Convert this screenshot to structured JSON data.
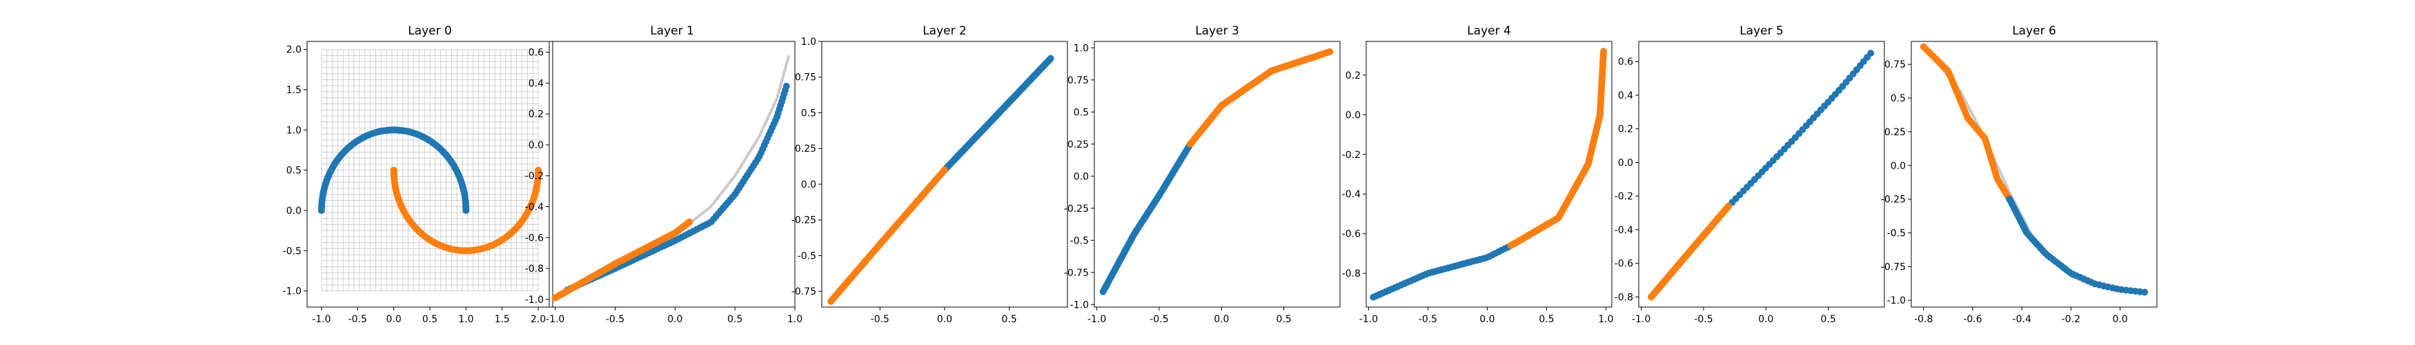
{
  "colors": {
    "series_blue": "#1f77b4",
    "series_orange": "#ff7f0e",
    "grid_line": "#c8c8c8",
    "manifold_line": "#bdbdbd",
    "axis": "#000000"
  },
  "chart_data": [
    {
      "title": "Layer 0",
      "type": "scatter",
      "xlim": [
        -1.2,
        2.2
      ],
      "ylim": [
        -1.2,
        2.1
      ],
      "xticks": [
        -1.0,
        -0.5,
        0.0,
        0.5,
        1.0,
        1.5,
        2.0
      ],
      "yticks": [
        -1.0,
        -0.5,
        0.0,
        0.5,
        1.0,
        1.5,
        2.0
      ],
      "grid": {
        "x": [
          -1.0,
          2.0
        ],
        "y": [
          -1.0,
          2.0
        ],
        "n": 41
      },
      "series": [
        {
          "color": "blue",
          "shape": "arc",
          "cx": 0.0,
          "cy": 0.0,
          "r": 1.0,
          "a0": 0,
          "a1": 180,
          "n": 100
        },
        {
          "color": "orange",
          "shape": "arc",
          "cx": 1.0,
          "cy": 0.5,
          "r": 1.0,
          "a0": 180,
          "a1": 360,
          "n": 100
        }
      ]
    },
    {
      "title": "Layer 1",
      "type": "scatter",
      "xlim": [
        -1.05,
        1.0
      ],
      "ylim": [
        -1.05,
        0.67
      ],
      "xticks": [
        -1.0,
        -0.5,
        0.0,
        0.5,
        1.0
      ],
      "yticks": [
        -1.0,
        -0.8,
        -0.6,
        -0.4,
        -0.2,
        0.0,
        0.2,
        0.4,
        0.6
      ],
      "manifold": [
        [
          -1.0,
          -1.0
        ],
        [
          -0.5,
          -0.78
        ],
        [
          0.0,
          -0.58
        ],
        [
          0.3,
          -0.4
        ],
        [
          0.5,
          -0.2
        ],
        [
          0.7,
          0.05
        ],
        [
          0.85,
          0.3
        ],
        [
          0.95,
          0.58
        ]
      ],
      "series": [
        {
          "color": "blue",
          "shape": "poly",
          "n": 90,
          "points": [
            [
              -0.9,
              -0.94
            ],
            [
              -0.5,
              -0.8
            ],
            [
              0.0,
              -0.62
            ],
            [
              0.3,
              -0.5
            ],
            [
              0.5,
              -0.32
            ],
            [
              0.7,
              -0.08
            ],
            [
              0.85,
              0.18
            ],
            [
              0.93,
              0.38
            ]
          ]
        },
        {
          "color": "orange",
          "shape": "poly",
          "n": 90,
          "points": [
            [
              -1.0,
              -0.99
            ],
            [
              -0.5,
              -0.77
            ],
            [
              0.0,
              -0.57
            ],
            [
              0.12,
              -0.5
            ]
          ]
        }
      ]
    },
    {
      "title": "Layer 2",
      "type": "scatter",
      "xlim": [
        -0.95,
        0.95
      ],
      "ylim": [
        -0.86,
        1.0
      ],
      "xticks": [
        -0.5,
        0.0,
        0.5
      ],
      "yticks": [
        -0.75,
        -0.5,
        -0.25,
        0.0,
        0.25,
        0.5,
        0.75,
        1.0
      ],
      "series": [
        {
          "color": "blue",
          "shape": "poly",
          "n": 100,
          "points": [
            [
              0.0,
              0.1
            ],
            [
              0.4,
              0.48
            ],
            [
              0.82,
              0.88
            ]
          ]
        },
        {
          "color": "orange",
          "shape": "poly",
          "n": 100,
          "points": [
            [
              -0.88,
              -0.82
            ],
            [
              -0.5,
              -0.42
            ],
            [
              0.0,
              0.1
            ]
          ]
        }
      ]
    },
    {
      "title": "Layer 3",
      "type": "scatter",
      "xlim": [
        -1.02,
        0.95
      ],
      "ylim": [
        -1.02,
        1.05
      ],
      "xticks": [
        -1.0,
        -0.5,
        0.0,
        0.5
      ],
      "yticks": [
        -1.0,
        -0.75,
        -0.5,
        -0.25,
        0.0,
        0.25,
        0.5,
        0.75,
        1.0
      ],
      "series": [
        {
          "color": "blue",
          "shape": "poly",
          "n": 70,
          "points": [
            [
              -0.95,
              -0.9
            ],
            [
              -0.7,
              -0.45
            ],
            [
              -0.5,
              -0.15
            ],
            [
              -0.25,
              0.25
            ]
          ]
        },
        {
          "color": "orange",
          "shape": "poly",
          "n": 120,
          "points": [
            [
              -0.25,
              0.25
            ],
            [
              0.0,
              0.55
            ],
            [
              0.4,
              0.82
            ],
            [
              0.87,
              0.97
            ]
          ]
        }
      ]
    },
    {
      "title": "Layer 4",
      "type": "scatter",
      "xlim": [
        -1.02,
        1.05
      ],
      "ylim": [
        -0.97,
        0.37
      ],
      "xticks": [
        -1.0,
        -0.5,
        0.0,
        0.5,
        1.0
      ],
      "yticks": [
        -0.8,
        -0.6,
        -0.4,
        -0.2,
        0.0,
        0.2
      ],
      "series": [
        {
          "color": "blue",
          "shape": "poly",
          "n": 45,
          "points": [
            [
              -0.96,
              -0.92
            ],
            [
              -0.5,
              -0.8
            ],
            [
              0.0,
              -0.72
            ],
            [
              0.2,
              -0.66
            ]
          ]
        },
        {
          "color": "orange",
          "shape": "poly",
          "n": 140,
          "points": [
            [
              0.2,
              -0.66
            ],
            [
              0.6,
              -0.52
            ],
            [
              0.85,
              -0.25
            ],
            [
              0.95,
              0.0
            ],
            [
              0.98,
              0.32
            ]
          ]
        }
      ]
    },
    {
      "title": "Layer 5",
      "type": "scatter",
      "xlim": [
        -1.02,
        0.95
      ],
      "ylim": [
        -0.86,
        0.72
      ],
      "xticks": [
        -1.0,
        -0.5,
        0.0,
        0.5
      ],
      "yticks": [
        -0.8,
        -0.6,
        -0.4,
        -0.2,
        0.0,
        0.2,
        0.4,
        0.6
      ],
      "series": [
        {
          "color": "blue",
          "shape": "poly",
          "n": 40,
          "points": [
            [
              -0.3,
              -0.26
            ],
            [
              0.2,
              0.12
            ],
            [
              0.6,
              0.44
            ],
            [
              0.84,
              0.65
            ]
          ]
        },
        {
          "color": "orange",
          "shape": "poly",
          "n": 100,
          "points": [
            [
              -0.92,
              -0.8
            ],
            [
              -0.6,
              -0.52
            ],
            [
              -0.3,
              -0.26
            ]
          ]
        }
      ]
    },
    {
      "title": "Layer 6",
      "type": "scatter",
      "xlim": [
        -0.85,
        0.15
      ],
      "ylim": [
        -1.05,
        0.92
      ],
      "xticks": [
        -0.8,
        -0.6,
        -0.4,
        -0.2,
        0.0
      ],
      "yticks": [
        -1.0,
        -0.75,
        -0.5,
        -0.25,
        0.0,
        0.25,
        0.5,
        0.75
      ],
      "manifold": [
        [
          -0.8,
          0.88
        ],
        [
          -0.65,
          0.55
        ],
        [
          -0.55,
          0.2
        ],
        [
          -0.45,
          -0.2
        ],
        [
          -0.35,
          -0.55
        ],
        [
          -0.2,
          -0.82
        ],
        [
          0.0,
          -0.93
        ],
        [
          0.1,
          -0.94
        ]
      ],
      "series": [
        {
          "color": "orange",
          "shape": "poly",
          "n": 60,
          "points": [
            [
              -0.8,
              0.88
            ],
            [
              -0.7,
              0.7
            ],
            [
              -0.62,
              0.35
            ],
            [
              -0.55,
              0.2
            ],
            [
              -0.5,
              -0.1
            ],
            [
              -0.45,
              -0.25
            ]
          ]
        },
        {
          "color": "blue",
          "shape": "poly",
          "n": 50,
          "points": [
            [
              -0.45,
              -0.25
            ],
            [
              -0.38,
              -0.5
            ],
            [
              -0.3,
              -0.66
            ],
            [
              -0.2,
              -0.8
            ],
            [
              -0.1,
              -0.88
            ],
            [
              0.0,
              -0.92
            ],
            [
              0.1,
              -0.94
            ]
          ]
        }
      ]
    }
  ]
}
